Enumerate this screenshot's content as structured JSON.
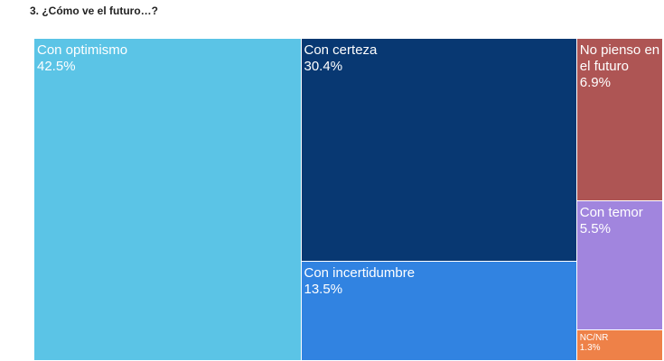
{
  "title": "3. ¿Cómo ve el futuro…?",
  "chart_data": {
    "type": "treemap",
    "title": "3. ¿Cómo ve el futuro…?",
    "items": [
      {
        "name": "Con optimismo",
        "value": 42.5,
        "label": "42.5%",
        "color": "#5BC4E6"
      },
      {
        "name": "Con certeza",
        "value": 30.4,
        "label": "30.4%",
        "color": "#083872"
      },
      {
        "name": "Con incertidumbre",
        "value": 13.5,
        "label": "13.5%",
        "color": "#3183E1"
      },
      {
        "name": "No pienso en el futuro",
        "value": 6.9,
        "label": "6.9%",
        "color": "#AE5554"
      },
      {
        "name": "Con temor",
        "value": 5.5,
        "label": "5.5%",
        "color": "#A185DE"
      },
      {
        "name": "NC/NR",
        "value": 1.3,
        "label": "1.3%",
        "color": "#EE8148"
      }
    ]
  }
}
